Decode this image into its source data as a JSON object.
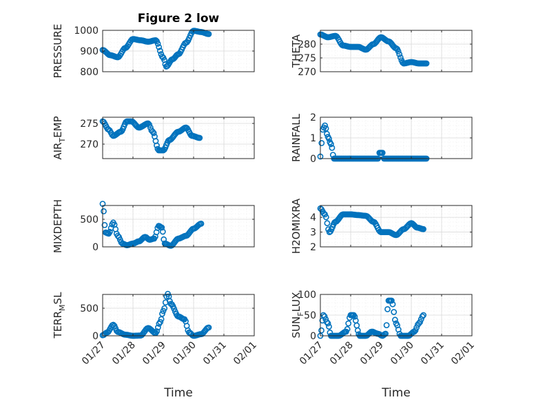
{
  "chart_data": [
    {
      "type": "scatter",
      "title": "Figure 2 low",
      "ylabel": {
        "base": "PRESSURE"
      },
      "ylim": [
        800,
        1000
      ],
      "yticks": [
        {
          "v": 800,
          "label": "800"
        },
        {
          "v": 900,
          "label": "900"
        },
        {
          "v": 1000,
          "label": "1000"
        }
      ],
      "grid": true,
      "series": [
        {
          "color": "#0072bd",
          "keys": [
            [
              0.0,
              905
            ],
            [
              0.25,
              880
            ],
            [
              0.5,
              870
            ],
            [
              0.75,
              915
            ],
            [
              1.0,
              958
            ],
            [
              1.25,
              952
            ],
            [
              1.5,
              945
            ],
            [
              1.75,
              952
            ],
            [
              2.0,
              868
            ],
            [
              2.1,
              825
            ],
            [
              2.3,
              860
            ],
            [
              2.5,
              885
            ],
            [
              2.75,
              940
            ],
            [
              3.0,
              998
            ],
            [
              3.25,
              992
            ],
            [
              3.5,
              982
            ]
          ]
        }
      ]
    },
    {
      "type": "scatter",
      "title": "",
      "ylabel": {
        "base": "THETA"
      },
      "ylim": [
        270,
        285
      ],
      "yticks": [
        {
          "v": 270,
          "label": "270"
        },
        {
          "v": 275,
          "label": "275"
        },
        {
          "v": 280,
          "label": "280"
        }
      ],
      "grid": true,
      "series": [
        {
          "color": "#0072bd",
          "keys": [
            [
              0.0,
              283.5
            ],
            [
              0.25,
              282.5
            ],
            [
              0.5,
              283
            ],
            [
              0.75,
              279.5
            ],
            [
              1.0,
              279
            ],
            [
              1.25,
              279
            ],
            [
              1.5,
              278
            ],
            [
              1.75,
              280
            ],
            [
              2.0,
              282.5
            ],
            [
              2.25,
              281
            ],
            [
              2.5,
              278.5
            ],
            [
              2.75,
              273
            ],
            [
              3.0,
              273.5
            ],
            [
              3.25,
              273
            ],
            [
              3.5,
              273
            ]
          ]
        }
      ]
    },
    {
      "type": "scatter",
      "title": "",
      "ylabel": {
        "base": "AIR",
        "sub": "T",
        "rest": "EMP"
      },
      "ylim": [
        266.5,
        276.5
      ],
      "yticks": [
        {
          "v": 270,
          "label": "270"
        },
        {
          "v": 275,
          "label": "275"
        }
      ],
      "grid": true,
      "series": [
        {
          "color": "#0072bd",
          "keys": [
            [
              0.0,
              275.5
            ],
            [
              0.2,
              273.5
            ],
            [
              0.35,
              272
            ],
            [
              0.6,
              273
            ],
            [
              0.8,
              275.5
            ],
            [
              0.95,
              275.5
            ],
            [
              1.2,
              274
            ],
            [
              1.5,
              275
            ],
            [
              1.65,
              273
            ],
            [
              1.85,
              268.5
            ],
            [
              2.0,
              268.5
            ],
            [
              2.2,
              271
            ],
            [
              2.5,
              273
            ],
            [
              2.75,
              274
            ],
            [
              2.95,
              272
            ],
            [
              3.2,
              271.5
            ]
          ]
        }
      ]
    },
    {
      "type": "scatter",
      "title": "",
      "ylabel": {
        "base": "RAINFALL"
      },
      "ylim": [
        0,
        2
      ],
      "yticks": [
        {
          "v": 0,
          "label": "0"
        },
        {
          "v": 1,
          "label": "1"
        },
        {
          "v": 2,
          "label": "2"
        }
      ],
      "grid": true,
      "series": [
        {
          "color": "#0072bd",
          "keys": [
            [
              0.0,
              0.1
            ],
            [
              0.08,
              1.4
            ],
            [
              0.15,
              1.6
            ],
            [
              0.25,
              1.05
            ],
            [
              0.35,
              0.7
            ],
            [
              0.45,
              0
            ],
            [
              1.0,
              0
            ],
            [
              1.5,
              0
            ],
            [
              1.9,
              0
            ],
            [
              1.95,
              0.28
            ],
            [
              2.05,
              0.28
            ],
            [
              2.1,
              0
            ],
            [
              3.0,
              0
            ],
            [
              3.5,
              0
            ]
          ]
        }
      ]
    },
    {
      "type": "scatter",
      "title": "",
      "ylabel": {
        "base": "MIXDEPTH"
      },
      "ylim": [
        0,
        750
      ],
      "yticks": [
        {
          "v": 0,
          "label": "0"
        },
        {
          "v": 500,
          "label": "500"
        }
      ],
      "grid": true,
      "series": [
        {
          "color": "#0072bd",
          "keys": [
            [
              0.0,
              780
            ],
            [
              0.1,
              260
            ],
            [
              0.2,
              240
            ],
            [
              0.35,
              440
            ],
            [
              0.5,
              200
            ],
            [
              0.65,
              60
            ],
            [
              0.8,
              30
            ],
            [
              1.0,
              60
            ],
            [
              1.2,
              100
            ],
            [
              1.4,
              180
            ],
            [
              1.55,
              130
            ],
            [
              1.7,
              150
            ],
            [
              1.85,
              380
            ],
            [
              1.95,
              350
            ],
            [
              2.05,
              60
            ],
            [
              2.25,
              20
            ],
            [
              2.5,
              150
            ],
            [
              2.75,
              200
            ],
            [
              3.0,
              330
            ],
            [
              3.25,
              420
            ]
          ]
        }
      ]
    },
    {
      "type": "scatter",
      "title": "",
      "ylabel": {
        "base": "H2OMIXRA"
      },
      "ylim": [
        2,
        4.8
      ],
      "yticks": [
        {
          "v": 2,
          "label": "2"
        },
        {
          "v": 3,
          "label": "3"
        },
        {
          "v": 4,
          "label": "4"
        }
      ],
      "grid": true,
      "series": [
        {
          "color": "#0072bd",
          "keys": [
            [
              0.0,
              4.6
            ],
            [
              0.15,
              4.2
            ],
            [
              0.3,
              3.0
            ],
            [
              0.5,
              3.7
            ],
            [
              0.75,
              4.2
            ],
            [
              1.0,
              4.2
            ],
            [
              1.25,
              4.15
            ],
            [
              1.5,
              4.1
            ],
            [
              1.75,
              3.7
            ],
            [
              2.0,
              3.0
            ],
            [
              2.25,
              3.0
            ],
            [
              2.5,
              2.8
            ],
            [
              2.75,
              3.2
            ],
            [
              3.0,
              3.6
            ],
            [
              3.2,
              3.3
            ],
            [
              3.4,
              3.2
            ]
          ]
        }
      ]
    },
    {
      "type": "scatter",
      "title": "",
      "ylabel": {
        "base": "TERR",
        "sub": "M",
        "rest": "SL"
      },
      "ylim": [
        0,
        750
      ],
      "yticks": [
        {
          "v": 0,
          "label": "0"
        },
        {
          "v": 500,
          "label": "500"
        }
      ],
      "grid": true,
      "series": [
        {
          "color": "#0072bd",
          "keys": [
            [
              0.0,
              10
            ],
            [
              0.15,
              60
            ],
            [
              0.35,
              200
            ],
            [
              0.5,
              70
            ],
            [
              0.75,
              20
            ],
            [
              1.0,
              0
            ],
            [
              1.25,
              5
            ],
            [
              1.5,
              140
            ],
            [
              1.75,
              50
            ],
            [
              1.9,
              250
            ],
            [
              2.0,
              450
            ],
            [
              2.15,
              760
            ],
            [
              2.25,
              580
            ],
            [
              2.5,
              350
            ],
            [
              2.7,
              300
            ],
            [
              2.85,
              60
            ],
            [
              3.0,
              0
            ],
            [
              3.25,
              30
            ],
            [
              3.5,
              150
            ]
          ]
        }
      ]
    },
    {
      "type": "scatter",
      "title": "",
      "ylabel": {
        "base": "SUN",
        "sub": "F",
        "rest": "LUX"
      },
      "ylim": [
        0,
        100
      ],
      "yticks": [
        {
          "v": 0,
          "label": "0"
        },
        {
          "v": 50,
          "label": "50"
        },
        {
          "v": 100,
          "label": "100"
        }
      ],
      "grid": true,
      "series": [
        {
          "color": "#0072bd",
          "keys": [
            [
              0.0,
              0
            ],
            [
              0.1,
              50
            ],
            [
              0.25,
              30
            ],
            [
              0.35,
              0
            ],
            [
              0.6,
              0
            ],
            [
              0.85,
              10
            ],
            [
              1.0,
              50
            ],
            [
              1.1,
              50
            ],
            [
              1.3,
              0
            ],
            [
              1.5,
              0
            ],
            [
              1.7,
              10
            ],
            [
              1.9,
              5
            ],
            [
              2.05,
              0
            ],
            [
              2.15,
              5
            ],
            [
              2.25,
              85
            ],
            [
              2.35,
              85
            ],
            [
              2.5,
              30
            ],
            [
              2.65,
              0
            ],
            [
              2.9,
              0
            ],
            [
              3.1,
              10
            ],
            [
              3.25,
              30
            ],
            [
              3.4,
              50
            ]
          ]
        }
      ]
    }
  ],
  "xaxis": {
    "ticks": [
      {
        "v": 0,
        "label": "01/27"
      },
      {
        "v": 1,
        "label": "01/28"
      },
      {
        "v": 2,
        "label": "01/29"
      },
      {
        "v": 3,
        "label": "01/30"
      },
      {
        "v": 4,
        "label": "01/31"
      },
      {
        "v": 5,
        "label": "02/01"
      }
    ],
    "label": "Time"
  }
}
